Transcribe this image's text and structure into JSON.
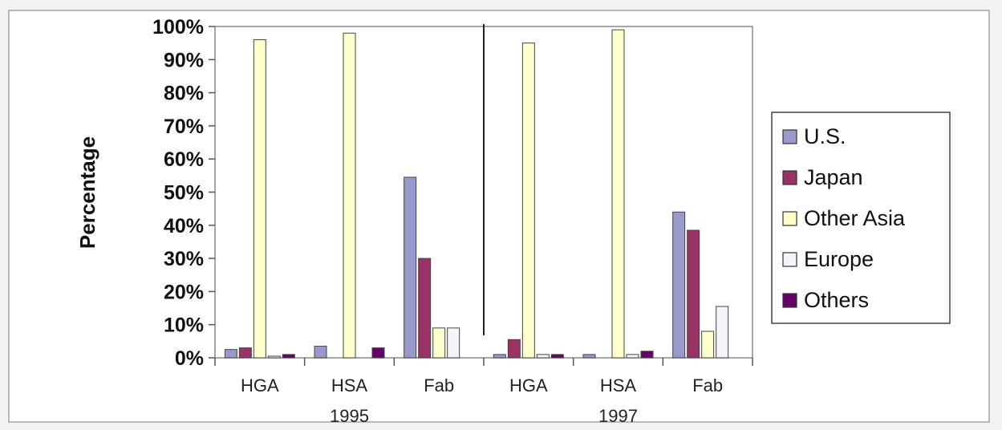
{
  "chart_data": {
    "type": "bar",
    "title": "",
    "ylabel": "Percentage",
    "ylim": [
      0,
      100
    ],
    "yticks": [
      "0%",
      "10%",
      "20%",
      "30%",
      "40%",
      "50%",
      "60%",
      "70%",
      "80%",
      "90%",
      "100%"
    ],
    "categories": [
      "HGA",
      "HSA",
      "Fab",
      "HGA",
      "HSA",
      "Fab"
    ],
    "groups": [
      {
        "label": "1995",
        "categories": [
          "HGA",
          "HSA",
          "Fab"
        ]
      },
      {
        "label": "1997",
        "categories": [
          "HGA",
          "HSA",
          "Fab"
        ]
      }
    ],
    "series": [
      {
        "name": "U.S.",
        "color": "#9999cc",
        "values": [
          2.5,
          3.5,
          54.5,
          1,
          1,
          44
        ]
      },
      {
        "name": "Japan",
        "color": "#993366",
        "values": [
          3,
          0,
          30,
          5.5,
          0,
          38.5
        ]
      },
      {
        "name": "Other Asia",
        "color": "#ffffcc",
        "values": [
          96,
          98,
          9,
          95,
          99,
          8
        ]
      },
      {
        "name": "Europe",
        "color": "#f4f4fa",
        "values": [
          0.5,
          0,
          9,
          1,
          1,
          15.5
        ]
      },
      {
        "name": "Others",
        "color": "#660066",
        "values": [
          1,
          3,
          0,
          1,
          2,
          0
        ]
      }
    ],
    "legend_position": "right",
    "grid": false
  }
}
